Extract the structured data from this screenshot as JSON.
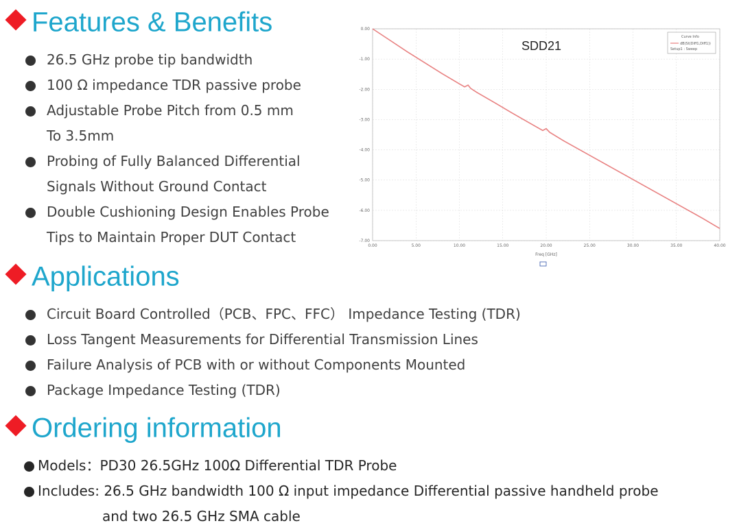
{
  "features": {
    "title": "Features & Benefits",
    "items": [
      [
        "26.5 GHz probe tip bandwidth"
      ],
      [
        "100 Ω impedance TDR passive probe"
      ],
      [
        "Adjustable Probe Pitch from 0.5 mm",
        "To 3.5mm"
      ],
      [
        "Probing of Fully Balanced Differential",
        "Signals Without Ground Contact"
      ],
      [
        "Double Cushioning Design Enables Probe",
        "Tips to Maintain Proper DUT Contact"
      ]
    ]
  },
  "applications": {
    "title": "Applications",
    "items": [
      "Circuit Board Controlled（PCB、FPC、FFC） Impedance Testing (TDR)",
      "Loss Tangent Measurements for Differential Transmission Lines",
      "Failure Analysis of PCB with or without Components Mounted",
      "Package Impedance Testing (TDR)"
    ]
  },
  "ordering": {
    "title": "Ordering information",
    "items": [
      [
        "Models：PD30 26.5GHz 100Ω Differential TDR Probe"
      ],
      [
        "Includes: 26.5 GHz bandwidth 100 Ω input impedance Differential passive handheld probe",
        "and two 26.5 GHz SMA cable"
      ]
    ]
  },
  "chart_data": {
    "type": "line",
    "title": "SDD21",
    "xlabel": "Freq [GHz]",
    "ylabel": "",
    "xlim": [
      0,
      40
    ],
    "ylim": [
      -7,
      0
    ],
    "x_ticks": [
      "0.00",
      "5.00",
      "10.00",
      "15.00",
      "20.00",
      "25.00",
      "30.00",
      "35.00",
      "40.00"
    ],
    "y_ticks": [
      "0.00",
      "-1.00",
      "-2.00",
      "-3.00",
      "-4.00",
      "-5.00",
      "-6.00",
      "-7.00"
    ],
    "grid": true,
    "legend_position": "top-right",
    "legend": {
      "title": "Curve Info",
      "entry": "dB(St(Diff1,Diff1))",
      "setup": "Setup1 : Sweep"
    },
    "series": [
      {
        "name": "dB(St(Diff1,Diff1))",
        "color": "#e88080",
        "x": [
          0,
          2,
          4,
          6,
          8,
          10,
          10.6,
          11.0,
          11.3,
          12,
          14,
          16,
          18,
          19.6,
          20.0,
          20.4,
          22,
          24,
          26,
          28,
          30,
          32,
          34,
          36,
          38,
          40
        ],
        "y": [
          0,
          -0.38,
          -0.76,
          -1.12,
          -1.48,
          -1.82,
          -1.92,
          -1.86,
          -1.97,
          -2.1,
          -2.43,
          -2.77,
          -3.1,
          -3.36,
          -3.3,
          -3.42,
          -3.7,
          -4.02,
          -4.34,
          -4.66,
          -4.98,
          -5.3,
          -5.62,
          -5.94,
          -6.26,
          -6.6
        ]
      }
    ]
  }
}
